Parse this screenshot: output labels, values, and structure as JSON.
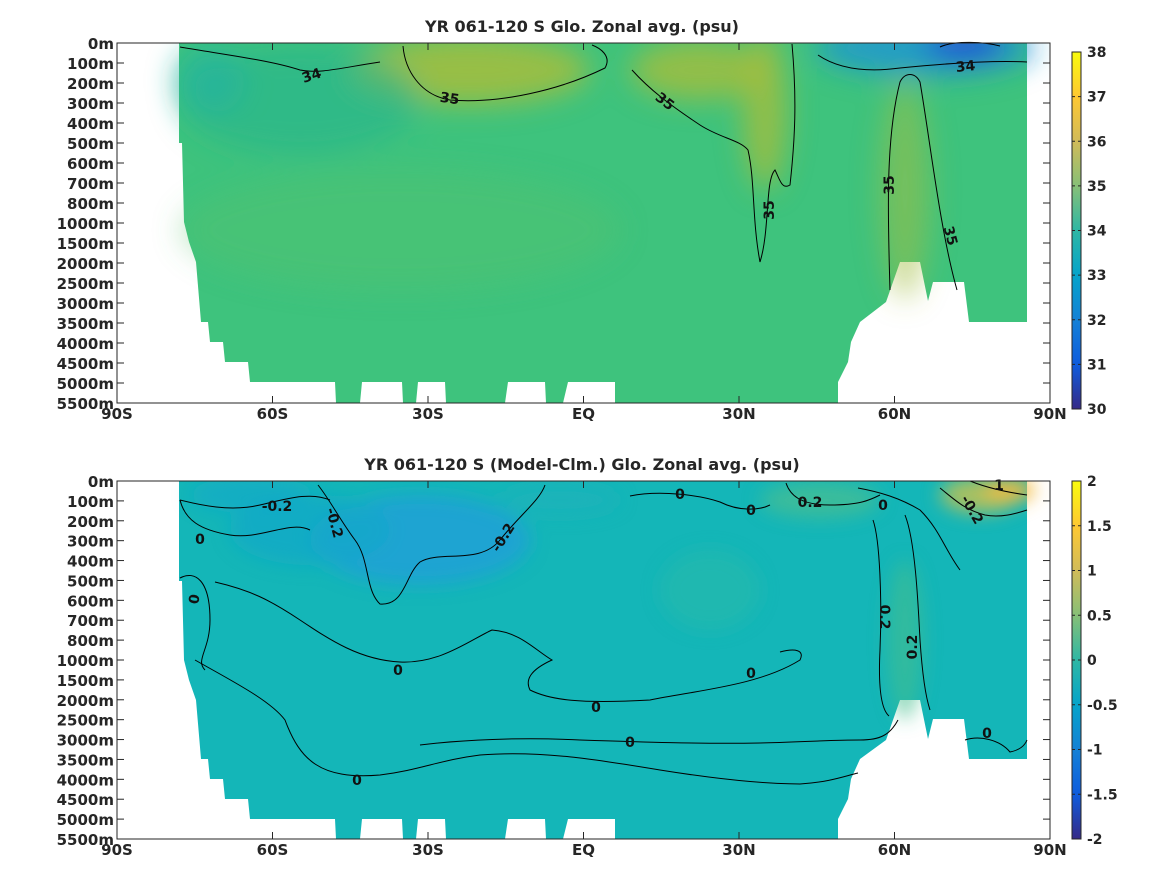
{
  "chart_data": [
    {
      "type": "heatmap",
      "title": "YR 061-120 S Glo. Zonal avg. (psu)",
      "xlabel": "",
      "ylabel": "",
      "x_ticks": [
        "90S",
        "60S",
        "30S",
        "EQ",
        "30N",
        "60N",
        "90N"
      ],
      "x_tick_values": [
        -90,
        -60,
        -30,
        0,
        30,
        60,
        90
      ],
      "xlim": [
        -90,
        90
      ],
      "y_ticks": [
        "0m",
        "100m",
        "200m",
        "300m",
        "400m",
        "500m",
        "600m",
        "700m",
        "800m",
        "1000m",
        "1500m",
        "2000m",
        "2500m",
        "3000m",
        "3500m",
        "4000m",
        "4500m",
        "5000m",
        "5500m"
      ],
      "y_scale": "stretched (non-linear depth levels, evenly spaced)",
      "colorbar": {
        "min": 30,
        "max": 38,
        "ticks": [
          "30",
          "31",
          "32",
          "33",
          "34",
          "35",
          "36",
          "37",
          "38"
        ],
        "colormap": "parula"
      },
      "contour_labels": [
        {
          "text": "34",
          "lat": -43,
          "depth_level": 1.7
        },
        {
          "text": "35",
          "lat": -27,
          "depth_level": 2.7
        },
        {
          "text": "35",
          "lat": 15,
          "depth_level": 2.8
        },
        {
          "text": "35",
          "lat": 37,
          "depth_level": 8.3
        },
        {
          "text": "35",
          "lat": 60,
          "depth_level": 7.0
        },
        {
          "text": "35",
          "lat": 66,
          "depth_level": 9.6
        },
        {
          "text": "34",
          "lat": 76,
          "depth_level": 1.2
        }
      ],
      "regions": {
        "mid_depth_fill": 34.6,
        "subtropical_high": 35.6,
        "north_atlantic": 35.3,
        "arctic_surface_low": 32.3,
        "southern_ocean": 34.3
      },
      "grid": false,
      "legend": "colorbar-right"
    },
    {
      "type": "heatmap",
      "title": "YR 061-120 S (Model-Clm.) Glo. Zonal avg. (psu)",
      "xlabel": "",
      "ylabel": "",
      "x_ticks": [
        "90S",
        "60S",
        "30S",
        "EQ",
        "30N",
        "60N",
        "90N"
      ],
      "x_tick_values": [
        -90,
        -60,
        -30,
        0,
        30,
        60,
        90
      ],
      "xlim": [
        -90,
        90
      ],
      "y_ticks": [
        "0m",
        "100m",
        "200m",
        "300m",
        "400m",
        "500m",
        "600m",
        "700m",
        "800m",
        "1000m",
        "1500m",
        "2000m",
        "2500m",
        "3000m",
        "3500m",
        "4000m",
        "4500m",
        "5000m",
        "5500m"
      ],
      "y_scale": "stretched (non-linear depth levels, evenly spaced)",
      "colorbar": {
        "min": -2,
        "max": 2,
        "ticks": [
          "-2",
          "-1.5",
          "-1",
          "-0.5",
          "0",
          "0.5",
          "1",
          "1.5",
          "2"
        ],
        "colormap": "parula"
      },
      "contour_labels": [
        {
          "text": "-0.2",
          "lat": -68,
          "depth_level": 1.2
        },
        {
          "text": "-0.2",
          "lat": -49,
          "depth_level": 2.0
        },
        {
          "text": "-0.2",
          "lat": -14,
          "depth_level": 2.8
        },
        {
          "text": "0",
          "lat": -74,
          "depth_level": 2.9
        },
        {
          "text": "0",
          "lat": -75,
          "depth_level": 6.0
        },
        {
          "text": "0",
          "lat": -35,
          "depth_level": 9.5
        },
        {
          "text": "0",
          "lat": 0,
          "depth_level": 11.3
        },
        {
          "text": "0",
          "lat": 8,
          "depth_level": 13.0
        },
        {
          "text": "0",
          "lat": -44,
          "depth_level": 15.0
        },
        {
          "text": "0",
          "lat": 33,
          "depth_level": 9.6
        },
        {
          "text": "0",
          "lat": 19,
          "depth_level": 0.6
        },
        {
          "text": "0",
          "lat": 33,
          "depth_level": 1.4
        },
        {
          "text": "0.2",
          "lat": 44,
          "depth_level": 1.0
        },
        {
          "text": "0",
          "lat": 60,
          "depth_level": 1.2
        },
        {
          "text": "0.2",
          "lat": 58,
          "depth_level": 6.8
        },
        {
          "text": "0.2",
          "lat": 66,
          "depth_level": 8.2
        },
        {
          "text": "-0.2",
          "lat": 74,
          "depth_level": 1.5
        },
        {
          "text": "1",
          "lat": 81,
          "depth_level": 0.2
        },
        {
          "text": "0",
          "lat": 77,
          "depth_level": 12.6
        }
      ],
      "regions": {
        "mid_depth_fill": -0.05,
        "south_upper_fresh_bias": -0.35,
        "north_atlantic_salty_bias": 0.35,
        "arctic_surface_bias": 1.0
      },
      "grid": false,
      "legend": "colorbar-right"
    }
  ]
}
